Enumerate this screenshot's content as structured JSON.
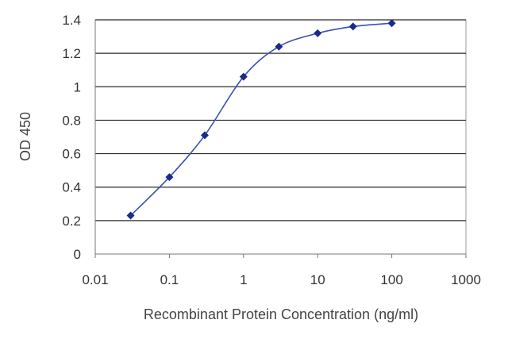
{
  "chart_data": {
    "type": "line",
    "xlabel": "Recombinant Protein Concentration (ng/ml)",
    "ylabel": "OD 450",
    "xscale": "log",
    "xlim": [
      0.01,
      1000
    ],
    "ylim": [
      0,
      1.4
    ],
    "x_ticks": [
      0.01,
      0.1,
      1,
      10,
      100,
      1000
    ],
    "x_tick_labels": [
      "0.01",
      "0.1",
      "1",
      "10",
      "100",
      "1000"
    ],
    "y_ticks": [
      0,
      0.2,
      0.4,
      0.6,
      0.8,
      1,
      1.2,
      1.4
    ],
    "y_tick_labels": [
      "0",
      "0.2",
      "0.4",
      "0.6",
      "0.8",
      "1",
      "1.2",
      "1.4"
    ],
    "grid": "horizontal",
    "legend": "none",
    "series": [
      {
        "x": [
          0.03,
          0.1,
          0.3,
          1,
          3,
          10,
          30,
          100
        ],
        "y": [
          0.23,
          0.46,
          0.71,
          1.06,
          1.24,
          1.32,
          1.36,
          1.38
        ]
      }
    ],
    "line_color": "#3a4fb8",
    "marker_color": "#1a2a8a"
  }
}
